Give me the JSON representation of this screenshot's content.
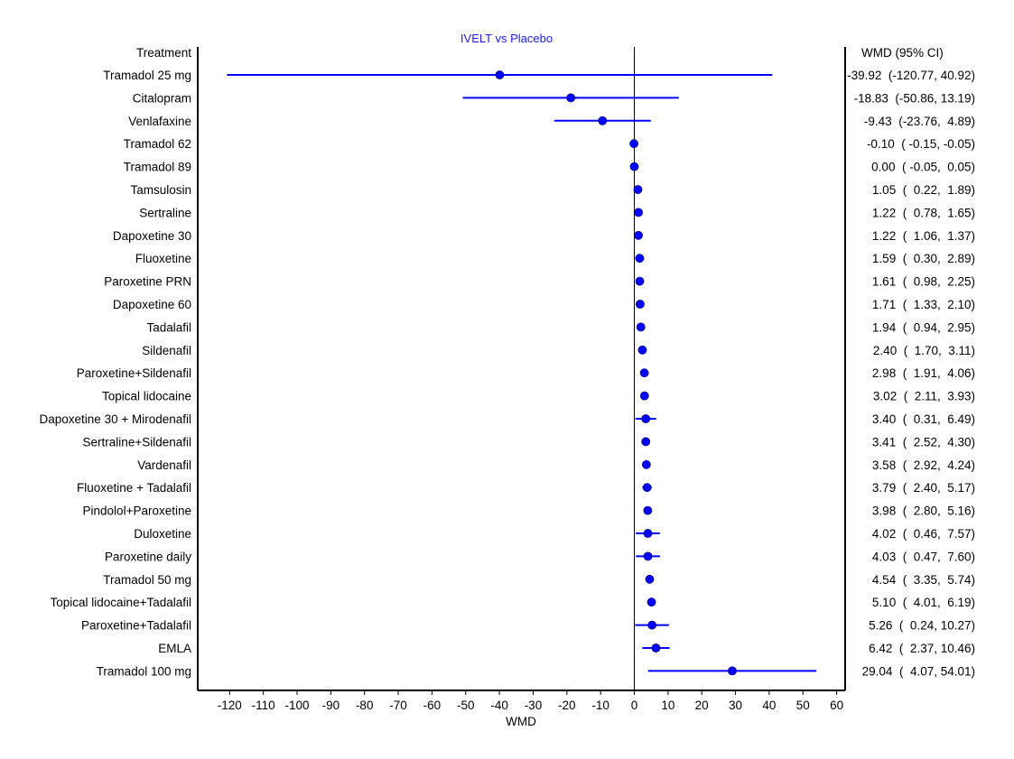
{
  "chart_data": {
    "type": "forest",
    "title": "IVELT vs Placebo",
    "xlabel": "WMD",
    "left_header": "Treatment",
    "right_header": "WMD (95% CI)",
    "xlim": [
      -130,
      63
    ],
    "xticks": [
      -120,
      -110,
      -100,
      -90,
      -80,
      -70,
      -60,
      -50,
      -40,
      -30,
      -20,
      -10,
      0,
      10,
      20,
      30,
      40,
      50,
      60
    ],
    "reference_line": 0,
    "marker_color": "#0000ff",
    "rows": [
      {
        "treatment": "Tramadol 25 mg",
        "wmd": -39.92,
        "lower": -120.77,
        "upper": 40.92,
        "ci_text": "-39.92  (-120.77, 40.92)"
      },
      {
        "treatment": "Citalopram",
        "wmd": -18.83,
        "lower": -50.86,
        "upper": 13.19,
        "ci_text": "-18.83  (-50.86, 13.19)"
      },
      {
        "treatment": "Venlafaxine",
        "wmd": -9.43,
        "lower": -23.76,
        "upper": 4.89,
        "ci_text": "-9.43  (-23.76,  4.89)"
      },
      {
        "treatment": "Tramadol 62",
        "wmd": -0.1,
        "lower": -0.15,
        "upper": -0.05,
        "ci_text": "-0.10  ( -0.15, -0.05)"
      },
      {
        "treatment": "Tramadol 89",
        "wmd": 0.0,
        "lower": -0.05,
        "upper": 0.05,
        "ci_text": "0.00  ( -0.05,  0.05)"
      },
      {
        "treatment": "Tamsulosin",
        "wmd": 1.05,
        "lower": 0.22,
        "upper": 1.89,
        "ci_text": "1.05  (  0.22,  1.89)"
      },
      {
        "treatment": "Sertraline",
        "wmd": 1.22,
        "lower": 0.78,
        "upper": 1.65,
        "ci_text": "1.22  (  0.78,  1.65)"
      },
      {
        "treatment": "Dapoxetine 30",
        "wmd": 1.22,
        "lower": 1.06,
        "upper": 1.37,
        "ci_text": "1.22  (  1.06,  1.37)"
      },
      {
        "treatment": "Fluoxetine",
        "wmd": 1.59,
        "lower": 0.3,
        "upper": 2.89,
        "ci_text": "1.59  (  0.30,  2.89)"
      },
      {
        "treatment": "Paroxetine PRN",
        "wmd": 1.61,
        "lower": 0.98,
        "upper": 2.25,
        "ci_text": "1.61  (  0.98,  2.25)"
      },
      {
        "treatment": "Dapoxetine 60",
        "wmd": 1.71,
        "lower": 1.33,
        "upper": 2.1,
        "ci_text": "1.71  (  1.33,  2.10)"
      },
      {
        "treatment": "Tadalafil",
        "wmd": 1.94,
        "lower": 0.94,
        "upper": 2.95,
        "ci_text": "1.94  (  0.94,  2.95)"
      },
      {
        "treatment": "Sildenafil",
        "wmd": 2.4,
        "lower": 1.7,
        "upper": 3.11,
        "ci_text": "2.40  (  1.70,  3.11)"
      },
      {
        "treatment": "Paroxetine+Sildenafil",
        "wmd": 2.98,
        "lower": 1.91,
        "upper": 4.06,
        "ci_text": "2.98  (  1.91,  4.06)"
      },
      {
        "treatment": "Topical lidocaine",
        "wmd": 3.02,
        "lower": 2.11,
        "upper": 3.93,
        "ci_text": "3.02  (  2.11,  3.93)"
      },
      {
        "treatment": "Dapoxetine 30 + Mirodenafil",
        "wmd": 3.4,
        "lower": 0.31,
        "upper": 6.49,
        "ci_text": "3.40  (  0.31,  6.49)"
      },
      {
        "treatment": "Sertraline+Sildenafil",
        "wmd": 3.41,
        "lower": 2.52,
        "upper": 4.3,
        "ci_text": "3.41  (  2.52,  4.30)"
      },
      {
        "treatment": "Vardenafil",
        "wmd": 3.58,
        "lower": 2.92,
        "upper": 4.24,
        "ci_text": "3.58  (  2.92,  4.24)"
      },
      {
        "treatment": "Fluoxetine + Tadalafil",
        "wmd": 3.79,
        "lower": 2.4,
        "upper": 5.17,
        "ci_text": "3.79  (  2.40,  5.17)"
      },
      {
        "treatment": "Pindolol+Paroxetine",
        "wmd": 3.98,
        "lower": 2.8,
        "upper": 5.16,
        "ci_text": "3.98  (  2.80,  5.16)"
      },
      {
        "treatment": "Duloxetine",
        "wmd": 4.02,
        "lower": 0.46,
        "upper": 7.57,
        "ci_text": "4.02  (  0.46,  7.57)"
      },
      {
        "treatment": "Paroxetine daily",
        "wmd": 4.03,
        "lower": 0.47,
        "upper": 7.6,
        "ci_text": "4.03  (  0.47,  7.60)"
      },
      {
        "treatment": "Tramadol 50 mg",
        "wmd": 4.54,
        "lower": 3.35,
        "upper": 5.74,
        "ci_text": "4.54  (  3.35,  5.74)"
      },
      {
        "treatment": "Topical lidocaine+Tadalafil",
        "wmd": 5.1,
        "lower": 4.01,
        "upper": 6.19,
        "ci_text": "5.10  (  4.01,  6.19)"
      },
      {
        "treatment": "Paroxetine+Tadalafil",
        "wmd": 5.26,
        "lower": 0.24,
        "upper": 10.27,
        "ci_text": "5.26  (  0.24, 10.27)"
      },
      {
        "treatment": "EMLA",
        "wmd": 6.42,
        "lower": 2.37,
        "upper": 10.46,
        "ci_text": "6.42  (  2.37, 10.46)"
      },
      {
        "treatment": "Tramadol 100 mg",
        "wmd": 29.04,
        "lower": 4.07,
        "upper": 54.01,
        "ci_text": "29.04  (  4.07, 54.01)"
      }
    ]
  }
}
